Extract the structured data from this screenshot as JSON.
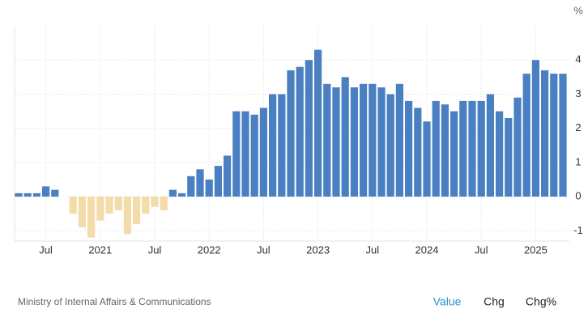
{
  "chart_data": {
    "type": "bar",
    "unit": "%",
    "categories": [
      null,
      null,
      null,
      "Jul",
      null,
      null,
      null,
      null,
      null,
      "2021",
      null,
      null,
      null,
      null,
      null,
      "Jul",
      null,
      null,
      null,
      null,
      null,
      "2022",
      null,
      null,
      null,
      null,
      null,
      "Jul",
      null,
      null,
      null,
      null,
      null,
      "2023",
      null,
      null,
      null,
      null,
      null,
      "Jul",
      null,
      null,
      null,
      null,
      null,
      "2024",
      null,
      null,
      null,
      null,
      null,
      "Jul",
      null,
      null,
      null,
      null,
      null,
      "2025",
      null,
      null,
      null
    ],
    "values": [
      0.1,
      0.1,
      0.1,
      0.3,
      0.2,
      0.0,
      -0.5,
      -0.9,
      -1.2,
      -0.7,
      -0.5,
      -0.4,
      -1.1,
      -0.8,
      -0.5,
      -0.3,
      -0.4,
      0.2,
      0.1,
      0.6,
      0.8,
      0.5,
      0.9,
      1.2,
      2.5,
      2.5,
      2.4,
      2.6,
      3.0,
      3.0,
      3.7,
      3.8,
      4.0,
      4.3,
      3.3,
      3.2,
      3.5,
      3.2,
      3.3,
      3.3,
      3.2,
      3.0,
      3.3,
      2.8,
      2.6,
      2.2,
      2.8,
      2.7,
      2.5,
      2.8,
      2.8,
      2.8,
      3.0,
      2.5,
      2.3,
      2.9,
      3.6,
      4.0,
      3.7,
      3.6,
      3.6
    ],
    "color": "#4a7fc1",
    "negative_color": "#f4dcaa",
    "ylim": [
      -1.3,
      5
    ],
    "yticks": [
      -1,
      0,
      1,
      2,
      3,
      4
    ],
    "grid": true
  },
  "source": "Ministry of Internal Affairs & Communications",
  "tabs": [
    "Value",
    "Chg",
    "Chg%"
  ],
  "active_tab": 0
}
